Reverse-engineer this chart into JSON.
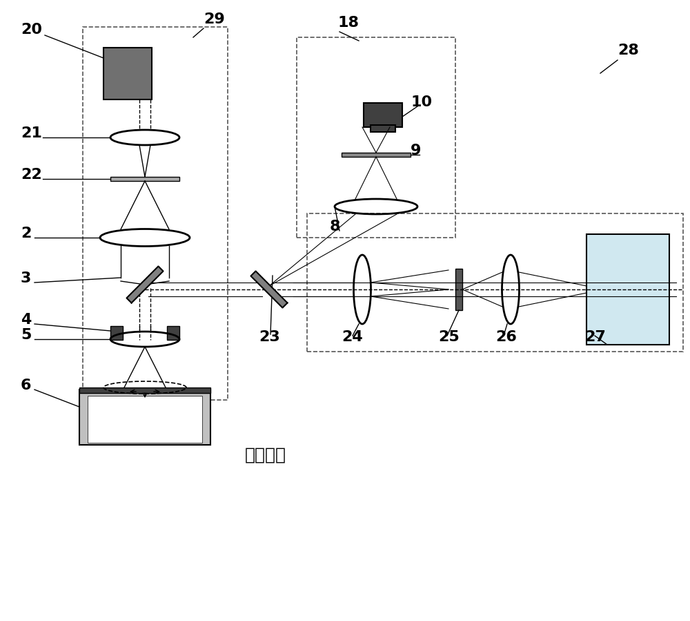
{
  "bg_color": "#ffffff",
  "line_color": "#000000",
  "dashed_box_color": "#555555",
  "component_gray": "#707070",
  "component_dark": "#404040",
  "lens_color": "#000000",
  "screen_fill": "#d0e8f0",
  "sample_fill": "#c0c0c0",
  "sample_light": "#e8e8e8",
  "title": "",
  "label_fontsize": 14,
  "annotation_fontsize": 16,
  "chinese_text": "振动样品",
  "chinese_fontsize": 18
}
